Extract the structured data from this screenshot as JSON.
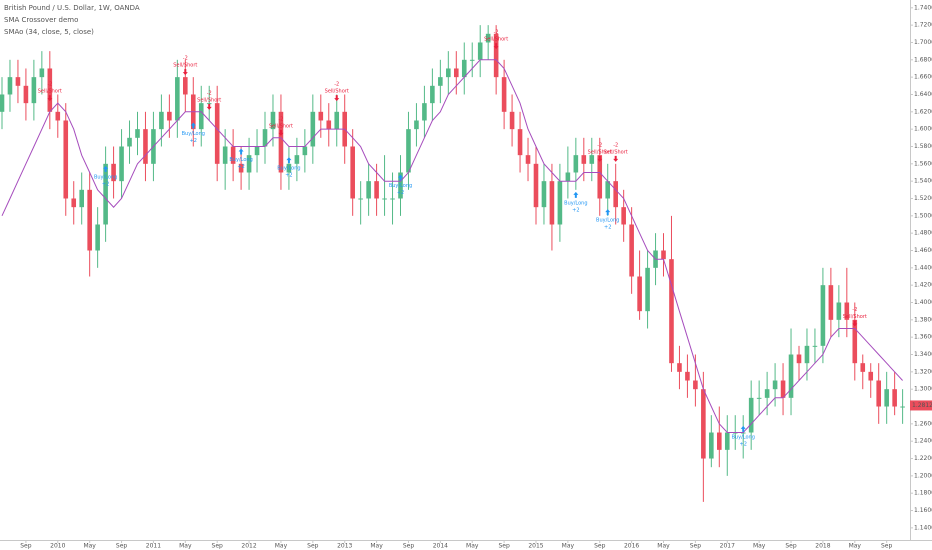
{
  "chart_data": {
    "type": "candlestick",
    "title": "British Pound / U.S. Dollar, 1W, OANDA",
    "subtitle": "SMA Crossover demo",
    "indicator_label": "SMAo (34, close, 5, close)",
    "x": [
      "2009-06",
      "2009-07",
      "2009-08",
      "2009-09",
      "2009-10",
      "2009-11",
      "2009-12",
      "2010-01",
      "2010-02",
      "2010-03",
      "2010-04",
      "2010-05",
      "2010-06",
      "2010-07",
      "2010-08",
      "2010-09",
      "2010-10",
      "2010-11",
      "2010-12",
      "2011-01",
      "2011-02",
      "2011-03",
      "2011-04",
      "2011-05",
      "2011-06",
      "2011-07",
      "2011-08",
      "2011-09",
      "2011-10",
      "2011-11",
      "2011-12",
      "2012-01",
      "2012-02",
      "2012-03",
      "2012-04",
      "2012-05",
      "2012-06",
      "2012-07",
      "2012-08",
      "2012-09",
      "2012-10",
      "2012-11",
      "2012-12",
      "2013-01",
      "2013-02",
      "2013-03",
      "2013-04",
      "2013-05",
      "2013-06",
      "2013-07",
      "2013-08",
      "2013-09",
      "2013-10",
      "2013-11",
      "2013-12",
      "2014-01",
      "2014-02",
      "2014-03",
      "2014-04",
      "2014-05",
      "2014-06",
      "2014-07",
      "2014-08",
      "2014-09",
      "2014-10",
      "2014-11",
      "2014-12",
      "2015-01",
      "2015-02",
      "2015-03",
      "2015-04",
      "2015-05",
      "2015-06",
      "2015-07",
      "2015-08",
      "2015-09",
      "2015-10",
      "2015-11",
      "2015-12",
      "2016-01",
      "2016-02",
      "2016-03",
      "2016-04",
      "2016-05",
      "2016-06",
      "2016-07",
      "2016-08",
      "2016-09",
      "2016-10",
      "2016-11",
      "2016-12",
      "2017-01",
      "2017-02",
      "2017-03",
      "2017-04",
      "2017-05",
      "2017-06",
      "2017-07",
      "2017-08",
      "2017-09",
      "2017-10",
      "2017-11",
      "2017-12",
      "2018-01",
      "2018-02",
      "2018-03",
      "2018-04",
      "2018-05",
      "2018-06",
      "2018-07",
      "2018-08",
      "2018-09",
      "2018-10",
      "2018-11"
    ],
    "open": [
      1.62,
      1.64,
      1.66,
      1.65,
      1.63,
      1.66,
      1.67,
      1.62,
      1.61,
      1.52,
      1.51,
      1.53,
      1.46,
      1.49,
      1.56,
      1.54,
      1.58,
      1.59,
      1.6,
      1.56,
      1.6,
      1.62,
      1.61,
      1.66,
      1.64,
      1.6,
      1.63,
      1.63,
      1.56,
      1.58,
      1.56,
      1.55,
      1.57,
      1.58,
      1.6,
      1.62,
      1.55,
      1.56,
      1.57,
      1.58,
      1.62,
      1.61,
      1.6,
      1.62,
      1.58,
      1.52,
      1.52,
      1.54,
      1.52,
      1.52,
      1.52,
      1.55,
      1.6,
      1.61,
      1.63,
      1.65,
      1.66,
      1.67,
      1.66,
      1.68,
      1.68,
      1.7,
      1.71,
      1.66,
      1.62,
      1.6,
      1.57,
      1.56,
      1.51,
      1.54,
      1.49,
      1.54,
      1.55,
      1.57,
      1.56,
      1.57,
      1.52,
      1.54,
      1.51,
      1.49,
      1.43,
      1.39,
      1.44,
      1.46,
      1.45,
      1.33,
      1.32,
      1.31,
      1.3,
      1.22,
      1.25,
      1.23,
      1.25,
      1.25,
      1.25,
      1.29,
      1.29,
      1.3,
      1.31,
      1.29,
      1.34,
      1.33,
      1.35,
      1.35,
      1.42,
      1.38,
      1.4,
      1.38,
      1.33,
      1.32,
      1.31,
      1.28,
      1.3,
      1.28
    ],
    "high": [
      1.66,
      1.68,
      1.68,
      1.67,
      1.68,
      1.69,
      1.69,
      1.64,
      1.63,
      1.54,
      1.55,
      1.55,
      1.51,
      1.58,
      1.58,
      1.6,
      1.61,
      1.62,
      1.62,
      1.62,
      1.64,
      1.64,
      1.68,
      1.68,
      1.66,
      1.65,
      1.65,
      1.65,
      1.6,
      1.6,
      1.58,
      1.59,
      1.6,
      1.62,
      1.64,
      1.64,
      1.58,
      1.59,
      1.6,
      1.64,
      1.64,
      1.63,
      1.64,
      1.64,
      1.6,
      1.54,
      1.56,
      1.56,
      1.57,
      1.55,
      1.57,
      1.62,
      1.63,
      1.65,
      1.67,
      1.68,
      1.69,
      1.69,
      1.7,
      1.7,
      1.72,
      1.72,
      1.72,
      1.68,
      1.64,
      1.62,
      1.59,
      1.58,
      1.56,
      1.56,
      1.56,
      1.58,
      1.59,
      1.59,
      1.59,
      1.59,
      1.56,
      1.56,
      1.53,
      1.51,
      1.46,
      1.46,
      1.48,
      1.48,
      1.5,
      1.35,
      1.34,
      1.34,
      1.32,
      1.27,
      1.28,
      1.27,
      1.27,
      1.27,
      1.31,
      1.31,
      1.32,
      1.33,
      1.33,
      1.37,
      1.35,
      1.37,
      1.37,
      1.44,
      1.44,
      1.42,
      1.44,
      1.4,
      1.34,
      1.33,
      1.33,
      1.32,
      1.32,
      1.3
    ],
    "low": [
      1.6,
      1.62,
      1.63,
      1.61,
      1.61,
      1.64,
      1.6,
      1.59,
      1.5,
      1.49,
      1.49,
      1.43,
      1.44,
      1.47,
      1.52,
      1.52,
      1.56,
      1.57,
      1.54,
      1.54,
      1.58,
      1.59,
      1.59,
      1.62,
      1.58,
      1.58,
      1.61,
      1.54,
      1.53,
      1.54,
      1.53,
      1.53,
      1.55,
      1.56,
      1.58,
      1.53,
      1.53,
      1.54,
      1.55,
      1.56,
      1.59,
      1.58,
      1.58,
      1.56,
      1.5,
      1.49,
      1.5,
      1.5,
      1.5,
      1.49,
      1.5,
      1.53,
      1.58,
      1.59,
      1.61,
      1.63,
      1.64,
      1.64,
      1.64,
      1.66,
      1.66,
      1.68,
      1.64,
      1.6,
      1.58,
      1.55,
      1.54,
      1.49,
      1.49,
      1.46,
      1.47,
      1.52,
      1.53,
      1.54,
      1.54,
      1.5,
      1.5,
      1.49,
      1.47,
      1.41,
      1.38,
      1.37,
      1.42,
      1.43,
      1.32,
      1.3,
      1.29,
      1.28,
      1.17,
      1.21,
      1.21,
      1.2,
      1.23,
      1.22,
      1.23,
      1.27,
      1.27,
      1.28,
      1.27,
      1.27,
      1.31,
      1.31,
      1.33,
      1.33,
      1.36,
      1.36,
      1.36,
      1.31,
      1.3,
      1.29,
      1.26,
      1.26,
      1.27,
      1.26
    ],
    "close": [
      1.64,
      1.66,
      1.65,
      1.63,
      1.66,
      1.67,
      1.62,
      1.61,
      1.52,
      1.51,
      1.53,
      1.46,
      1.49,
      1.56,
      1.54,
      1.58,
      1.59,
      1.6,
      1.56,
      1.6,
      1.62,
      1.61,
      1.66,
      1.64,
      1.6,
      1.63,
      1.63,
      1.56,
      1.58,
      1.56,
      1.55,
      1.57,
      1.58,
      1.6,
      1.62,
      1.55,
      1.56,
      1.57,
      1.58,
      1.62,
      1.61,
      1.6,
      1.62,
      1.58,
      1.52,
      1.52,
      1.54,
      1.52,
      1.52,
      1.52,
      1.55,
      1.6,
      1.61,
      1.63,
      1.65,
      1.66,
      1.67,
      1.66,
      1.68,
      1.68,
      1.7,
      1.71,
      1.66,
      1.62,
      1.6,
      1.57,
      1.56,
      1.51,
      1.54,
      1.49,
      1.54,
      1.55,
      1.57,
      1.56,
      1.57,
      1.52,
      1.54,
      1.51,
      1.49,
      1.43,
      1.39,
      1.44,
      1.46,
      1.45,
      1.33,
      1.32,
      1.31,
      1.3,
      1.22,
      1.25,
      1.23,
      1.25,
      1.25,
      1.25,
      1.29,
      1.29,
      1.3,
      1.31,
      1.29,
      1.34,
      1.33,
      1.35,
      1.35,
      1.42,
      1.38,
      1.4,
      1.38,
      1.33,
      1.32,
      1.31,
      1.28,
      1.3,
      1.28,
      1.28
    ],
    "up_color": "#53b987",
    "down_color": "#eb4d5c",
    "sma": {
      "color": "#a64dbd",
      "values": [
        1.5,
        1.52,
        1.54,
        1.56,
        1.58,
        1.6,
        1.62,
        1.63,
        1.62,
        1.6,
        1.57,
        1.55,
        1.53,
        1.52,
        1.51,
        1.52,
        1.54,
        1.56,
        1.57,
        1.58,
        1.59,
        1.6,
        1.61,
        1.62,
        1.62,
        1.62,
        1.61,
        1.6,
        1.59,
        1.58,
        1.58,
        1.58,
        1.58,
        1.58,
        1.59,
        1.59,
        1.58,
        1.58,
        1.58,
        1.59,
        1.6,
        1.6,
        1.6,
        1.6,
        1.59,
        1.58,
        1.56,
        1.55,
        1.54,
        1.54,
        1.54,
        1.55,
        1.57,
        1.59,
        1.61,
        1.62,
        1.64,
        1.65,
        1.66,
        1.67,
        1.68,
        1.68,
        1.68,
        1.67,
        1.65,
        1.63,
        1.6,
        1.58,
        1.56,
        1.55,
        1.54,
        1.54,
        1.54,
        1.55,
        1.55,
        1.55,
        1.54,
        1.53,
        1.52,
        1.5,
        1.48,
        1.46,
        1.45,
        1.45,
        1.42,
        1.39,
        1.36,
        1.33,
        1.3,
        1.28,
        1.26,
        1.25,
        1.25,
        1.25,
        1.26,
        1.27,
        1.28,
        1.29,
        1.29,
        1.3,
        1.31,
        1.32,
        1.33,
        1.34,
        1.36,
        1.37,
        1.37,
        1.37,
        1.36,
        1.35,
        1.34,
        1.33,
        1.32,
        1.31
      ]
    },
    "signals": [
      {
        "date": "2009-12",
        "label": "Sell/Short",
        "qty": "-2",
        "price": 1.63
      },
      {
        "date": "2010-07",
        "label": "Buy/Long",
        "qty": "+2",
        "price": 1.56
      },
      {
        "date": "2011-05",
        "label": "Sell/Short",
        "qty": "-2",
        "price": 1.66
      },
      {
        "date": "2011-06",
        "label": "Buy/Long",
        "qty": "+2",
        "price": 1.61
      },
      {
        "date": "2011-08",
        "label": "Sell/Short",
        "qty": "-2",
        "price": 1.62
      },
      {
        "date": "2011-12",
        "label": "Buy/Long",
        "qty": "+2",
        "price": 1.58
      },
      {
        "date": "2012-05",
        "label": "Sell/Short",
        "qty": "-2",
        "price": 1.59
      },
      {
        "date": "2012-06",
        "label": "Buy/Long",
        "qty": "+2",
        "price": 1.57
      },
      {
        "date": "2012-12",
        "label": "Sell/Short",
        "qty": "-2",
        "price": 1.63
      },
      {
        "date": "2013-08",
        "label": "Buy/Long",
        "qty": "+2",
        "price": 1.55
      },
      {
        "date": "2014-08",
        "label": "Sell/Short",
        "qty": "-2",
        "price": 1.69
      },
      {
        "date": "2015-06",
        "label": "Buy/Long",
        "qty": "+2",
        "price": 1.53
      },
      {
        "date": "2015-09",
        "label": "Sell/Short",
        "qty": "-2",
        "price": 1.56
      },
      {
        "date": "2015-10",
        "label": "Buy/Long",
        "qty": "+2",
        "price": 1.51
      },
      {
        "date": "2015-11",
        "label": "Sell/Short",
        "qty": "-2",
        "price": 1.56
      },
      {
        "date": "2017-03",
        "label": "Buy/Long",
        "qty": "+2",
        "price": 1.26
      },
      {
        "date": "2018-05",
        "label": "Sell/Short",
        "qty": "-2",
        "price": 1.37
      }
    ],
    "buy_color": "#2196f3",
    "sell_color": "#e91e3c",
    "ylim": [
      1.126,
      1.749
    ],
    "yticks": [
      {
        "value": 1.14,
        "label": "1.14000"
      },
      {
        "value": 1.16,
        "label": "1.16000"
      },
      {
        "value": 1.18,
        "label": "1.18000"
      },
      {
        "value": 1.2,
        "label": "1.20000"
      },
      {
        "value": 1.22,
        "label": "1.22000"
      },
      {
        "value": 1.24,
        "label": "1.24000"
      },
      {
        "value": 1.26,
        "label": "1.26000"
      },
      {
        "value": 1.28,
        "label": "1.28000"
      },
      {
        "value": 1.3,
        "label": "1.30000"
      },
      {
        "value": 1.32,
        "label": "1.32000"
      },
      {
        "value": 1.34,
        "label": "1.34000"
      },
      {
        "value": 1.36,
        "label": "1.36000"
      },
      {
        "value": 1.38,
        "label": "1.38000"
      },
      {
        "value": 1.4,
        "label": "1.40000"
      },
      {
        "value": 1.42,
        "label": "1.42000"
      },
      {
        "value": 1.44,
        "label": "1.44000"
      },
      {
        "value": 1.46,
        "label": "1.46000"
      },
      {
        "value": 1.48,
        "label": "1.48000"
      },
      {
        "value": 1.5,
        "label": "1.50000"
      },
      {
        "value": 1.52,
        "label": "1.52000"
      },
      {
        "value": 1.54,
        "label": "1.54000"
      },
      {
        "value": 1.56,
        "label": "1.56000"
      },
      {
        "value": 1.58,
        "label": "1.58000"
      },
      {
        "value": 1.6,
        "label": "1.60000"
      },
      {
        "value": 1.62,
        "label": "1.62000"
      },
      {
        "value": 1.64,
        "label": "1.64000"
      },
      {
        "value": 1.66,
        "label": "1.66000"
      },
      {
        "value": 1.68,
        "label": "1.68000"
      },
      {
        "value": 1.7,
        "label": "1.70000"
      },
      {
        "value": 1.72,
        "label": "1.72000"
      },
      {
        "value": 1.74,
        "label": "1.74000"
      }
    ],
    "xticks": [
      {
        "value": "2009-09",
        "label": "Sep"
      },
      {
        "value": "2010-01",
        "label": "2010"
      },
      {
        "value": "2010-05",
        "label": "May"
      },
      {
        "value": "2010-09",
        "label": "Sep"
      },
      {
        "value": "2011-01",
        "label": "2011"
      },
      {
        "value": "2011-05",
        "label": "May"
      },
      {
        "value": "2011-09",
        "label": "Sep"
      },
      {
        "value": "2012-01",
        "label": "2012"
      },
      {
        "value": "2012-05",
        "label": "May"
      },
      {
        "value": "2012-09",
        "label": "Sep"
      },
      {
        "value": "2013-01",
        "label": "2013"
      },
      {
        "value": "2013-05",
        "label": "May"
      },
      {
        "value": "2013-09",
        "label": "Sep"
      },
      {
        "value": "2014-01",
        "label": "2014"
      },
      {
        "value": "2014-05",
        "label": "May"
      },
      {
        "value": "2014-09",
        "label": "Sep"
      },
      {
        "value": "2015-01",
        "label": "2015"
      },
      {
        "value": "2015-05",
        "label": "May"
      },
      {
        "value": "2015-09",
        "label": "Sep"
      },
      {
        "value": "2016-01",
        "label": "2016"
      },
      {
        "value": "2016-05",
        "label": "May"
      },
      {
        "value": "2016-09",
        "label": "Sep"
      },
      {
        "value": "2017-01",
        "label": "2017"
      },
      {
        "value": "2017-05",
        "label": "May"
      },
      {
        "value": "2017-09",
        "label": "Sep"
      },
      {
        "value": "2018-01",
        "label": "2018"
      },
      {
        "value": "2018-05",
        "label": "May"
      },
      {
        "value": "2018-09",
        "label": "Sep"
      }
    ],
    "last_price": 1.28123,
    "last_price_color": "#eb4d5c"
  }
}
